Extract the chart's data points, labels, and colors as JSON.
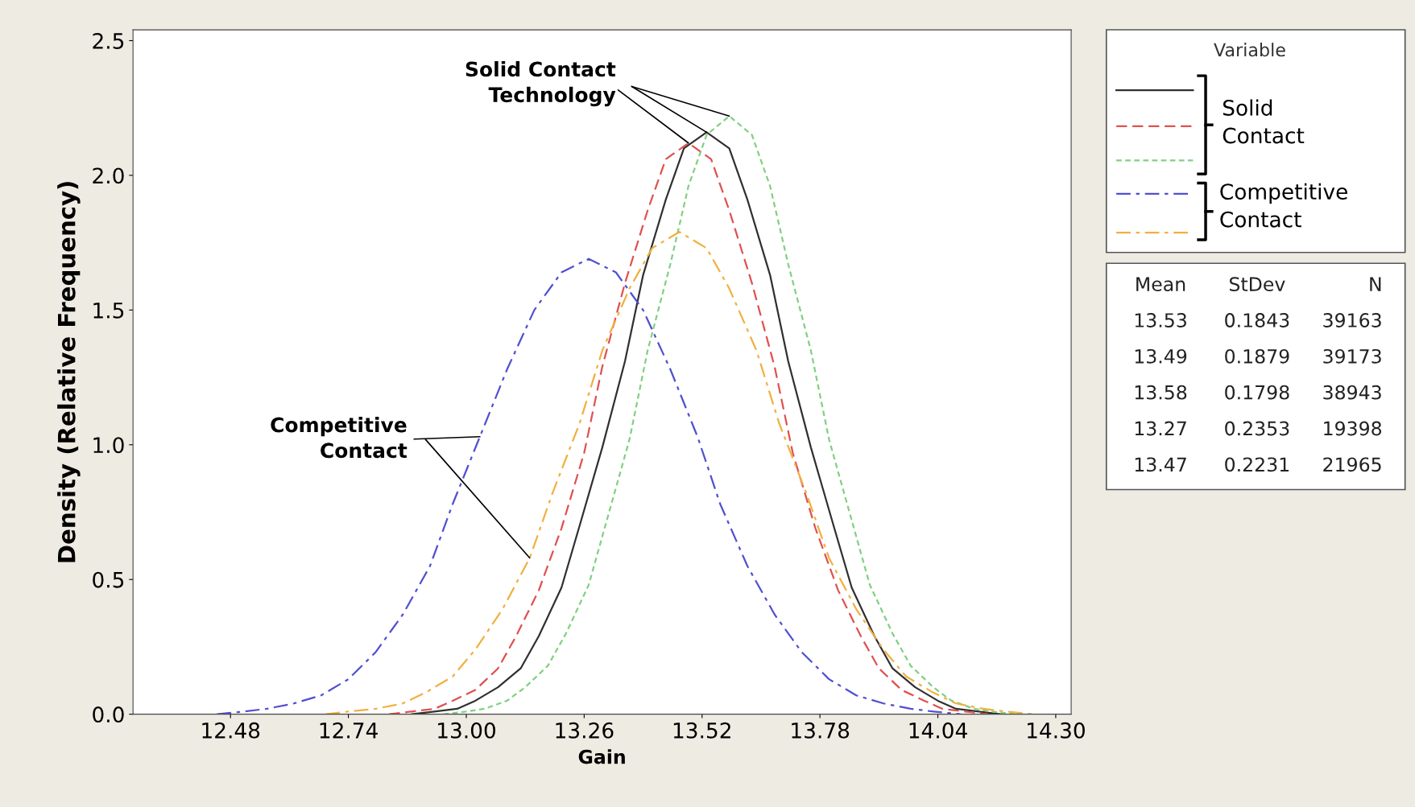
{
  "chart_data": {
    "type": "line",
    "xlabel": "Gain",
    "ylabel": "Density (Relative Frequency)",
    "legend_title": "Variable",
    "grid": false,
    "xlim": [
      12.265,
      14.334
    ],
    "ylim": [
      0,
      2.54
    ],
    "xticks": [
      12.48,
      12.74,
      {
        "value": 13.0,
        "label": "13.00"
      },
      13.26,
      13.52,
      13.78,
      14.04,
      {
        "value": 14.3,
        "label": "14.30"
      }
    ],
    "yticks": [
      {
        "value": 0,
        "label": "0.0"
      },
      0.5,
      {
        "value": 1,
        "label": "1.0"
      },
      1.5,
      {
        "value": 2,
        "label": "2.0"
      },
      2.5
    ],
    "series": [
      {
        "color": "#303030",
        "line_style": "solid",
        "x": [
          12.88,
          12.93,
          12.98,
          13.02,
          13.07,
          13.12,
          13.16,
          13.21,
          13.25,
          13.3,
          13.35,
          13.39,
          13.44,
          13.48,
          13.53,
          13.58,
          13.62,
          13.67,
          13.71,
          13.76,
          13.81,
          13.85,
          13.9,
          13.94,
          13.99,
          14.04,
          14.08,
          14.13,
          14.18
        ],
        "values": [
          0.0,
          0.01,
          0.02,
          0.05,
          0.1,
          0.17,
          0.29,
          0.47,
          0.7,
          0.99,
          1.31,
          1.63,
          1.91,
          2.1,
          2.16,
          2.1,
          1.91,
          1.63,
          1.31,
          0.99,
          0.7,
          0.47,
          0.29,
          0.17,
          0.1,
          0.05,
          0.02,
          0.01,
          0.0
        ]
      },
      {
        "color": "#e05050",
        "line_style": "dashed",
        "x": [
          12.83,
          12.88,
          12.93,
          12.97,
          13.02,
          13.07,
          13.11,
          13.16,
          13.21,
          13.26,
          13.3,
          13.35,
          13.4,
          13.44,
          13.49,
          13.54,
          13.58,
          13.63,
          13.68,
          13.72,
          13.77,
          13.82,
          13.87,
          13.91,
          13.96,
          14.01,
          14.05,
          14.1,
          14.15
        ],
        "values": [
          0.0,
          0.01,
          0.02,
          0.05,
          0.09,
          0.17,
          0.29,
          0.46,
          0.69,
          0.97,
          1.29,
          1.6,
          1.87,
          2.06,
          2.12,
          2.06,
          1.87,
          1.6,
          1.29,
          0.97,
          0.69,
          0.46,
          0.29,
          0.17,
          0.09,
          0.05,
          0.02,
          0.01,
          0.0
        ]
      },
      {
        "color": "#80d080",
        "line_style": "dotted",
        "x": [
          12.95,
          13.0,
          13.04,
          13.09,
          13.13,
          13.18,
          13.22,
          13.27,
          13.31,
          13.36,
          13.4,
          13.45,
          13.49,
          13.53,
          13.58,
          13.63,
          13.67,
          13.71,
          13.76,
          13.8,
          13.85,
          13.89,
          13.94,
          13.98,
          14.03,
          14.07,
          14.12,
          14.16,
          14.21
        ],
        "values": [
          0.0,
          0.01,
          0.02,
          0.05,
          0.1,
          0.18,
          0.3,
          0.48,
          0.72,
          1.02,
          1.35,
          1.67,
          1.96,
          2.15,
          2.22,
          2.15,
          1.96,
          1.67,
          1.35,
          1.02,
          0.72,
          0.48,
          0.3,
          0.18,
          0.1,
          0.05,
          0.02,
          0.01,
          0.0
        ]
      },
      {
        "color": "#5050d0",
        "line_style": "dashdot",
        "x": [
          12.45,
          12.51,
          12.56,
          12.62,
          12.68,
          12.74,
          12.8,
          12.86,
          12.92,
          12.97,
          13.03,
          13.09,
          13.15,
          13.21,
          13.27,
          13.33,
          13.39,
          13.45,
          13.51,
          13.56,
          13.62,
          13.68,
          13.74,
          13.8,
          13.86,
          13.92,
          13.98,
          14.03,
          14.09
        ],
        "values": [
          0.0,
          0.01,
          0.02,
          0.04,
          0.07,
          0.13,
          0.23,
          0.37,
          0.55,
          0.78,
          1.03,
          1.28,
          1.5,
          1.64,
          1.69,
          1.64,
          1.5,
          1.28,
          1.03,
          0.78,
          0.55,
          0.37,
          0.23,
          0.13,
          0.07,
          0.04,
          0.02,
          0.01,
          0.0
        ]
      },
      {
        "color": "#f0b040",
        "line_style": "dashdot",
        "x": [
          12.69,
          12.74,
          12.8,
          12.86,
          12.91,
          12.97,
          13.02,
          13.08,
          13.14,
          13.19,
          13.25,
          13.3,
          13.36,
          13.41,
          13.47,
          13.53,
          13.58,
          13.64,
          13.69,
          13.75,
          13.8,
          13.86,
          13.92,
          13.97,
          14.03,
          14.08,
          14.14,
          14.19,
          14.25
        ],
        "values": [
          0.0,
          0.01,
          0.02,
          0.04,
          0.08,
          0.14,
          0.24,
          0.39,
          0.58,
          0.82,
          1.08,
          1.35,
          1.58,
          1.73,
          1.79,
          1.73,
          1.58,
          1.35,
          1.08,
          0.82,
          0.58,
          0.39,
          0.24,
          0.14,
          0.08,
          0.04,
          0.02,
          0.01,
          0.0
        ]
      }
    ],
    "annotations": [
      {
        "text": "Solid Contact\nTechnology",
        "x": 13.49,
        "y": 2.12
      },
      {
        "text": "Competitive\nContact",
        "x": 13.03,
        "y": 1.03
      },
      "Solid\nContact",
      "Competitive\nContact",
      "Mean",
      "StDev",
      "N",
      "13.53",
      "0.1843",
      "39163",
      "13.49",
      "0.1879",
      "39173",
      "13.58",
      "0.1798",
      "38943",
      "13.27",
      "0.2353",
      "19398",
      "13.47",
      "0.2231",
      "21965"
    ]
  }
}
